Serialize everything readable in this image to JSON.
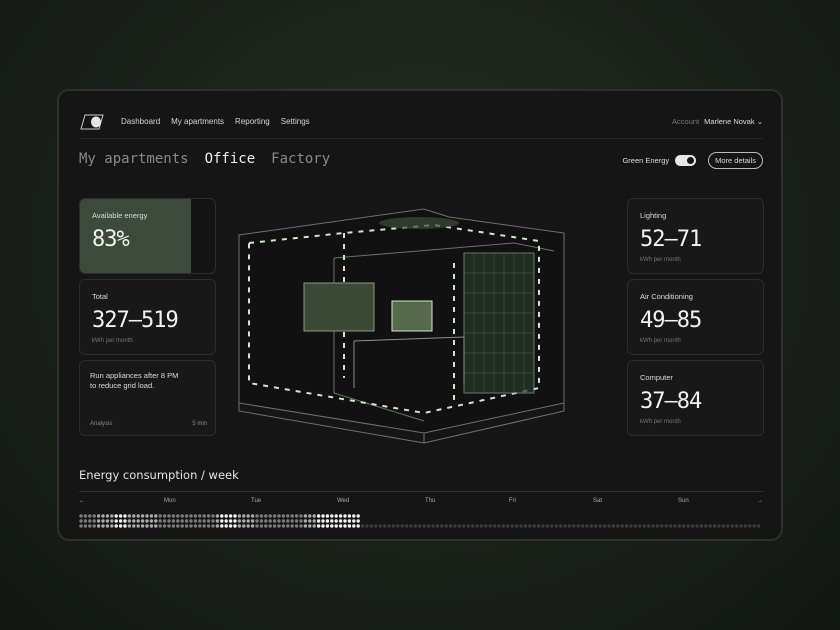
{
  "nav": {
    "items": [
      "Dashboard",
      "My apartments",
      "Reporting",
      "Settings"
    ],
    "account_label": "Account",
    "account_name": "Marlene Novak"
  },
  "tabs": [
    {
      "label": "My apartments",
      "active": false
    },
    {
      "label": "Office",
      "active": true
    },
    {
      "label": "Factory",
      "active": false
    }
  ],
  "controls": {
    "green_energy_label": "Green Energy",
    "green_energy_on": true,
    "more_details": "More details"
  },
  "left_cards": {
    "available": {
      "label": "Available energy",
      "value": "83%",
      "fill_percent": 82
    },
    "total": {
      "label": "Total",
      "value": "327–519",
      "unit": "kWh per month"
    },
    "analysis": {
      "text_line1": "Run appliances after 8 PM",
      "text_line2": "to reduce grid load.",
      "category": "Analysis",
      "duration": "5 min"
    }
  },
  "right_cards": [
    {
      "label": "Lighting",
      "value": "52–71",
      "unit": "kWh per month"
    },
    {
      "label": "Air Conditioning",
      "value": "49–85",
      "unit": "kWh per month"
    },
    {
      "label": "Computer",
      "value": "37–84",
      "unit": "kWh per month"
    }
  ],
  "week": {
    "title": "Energy consumption / week",
    "prev": "←",
    "next": "→",
    "days": [
      "Mon",
      "Tue",
      "Wed",
      "Thu",
      "Fri",
      "Sat",
      "Sun"
    ],
    "levels": [
      1,
      1,
      1,
      1,
      2,
      2,
      2,
      2,
      3,
      3,
      3,
      2,
      2,
      2,
      2,
      2,
      2,
      2,
      1,
      1,
      1,
      1,
      1,
      1,
      1,
      1,
      1,
      1,
      1,
      1,
      1,
      2,
      3,
      3,
      3,
      3,
      2,
      2,
      2,
      2,
      1,
      1,
      1,
      1,
      1,
      1,
      1,
      1,
      1,
      1,
      1,
      2,
      2,
      2,
      3,
      3,
      3,
      3,
      3,
      3,
      3,
      3,
      3,
      3
    ]
  },
  "colors": {
    "accent": "#3b4a3b",
    "glow": "#cfe8c8",
    "panel": "#141514"
  }
}
